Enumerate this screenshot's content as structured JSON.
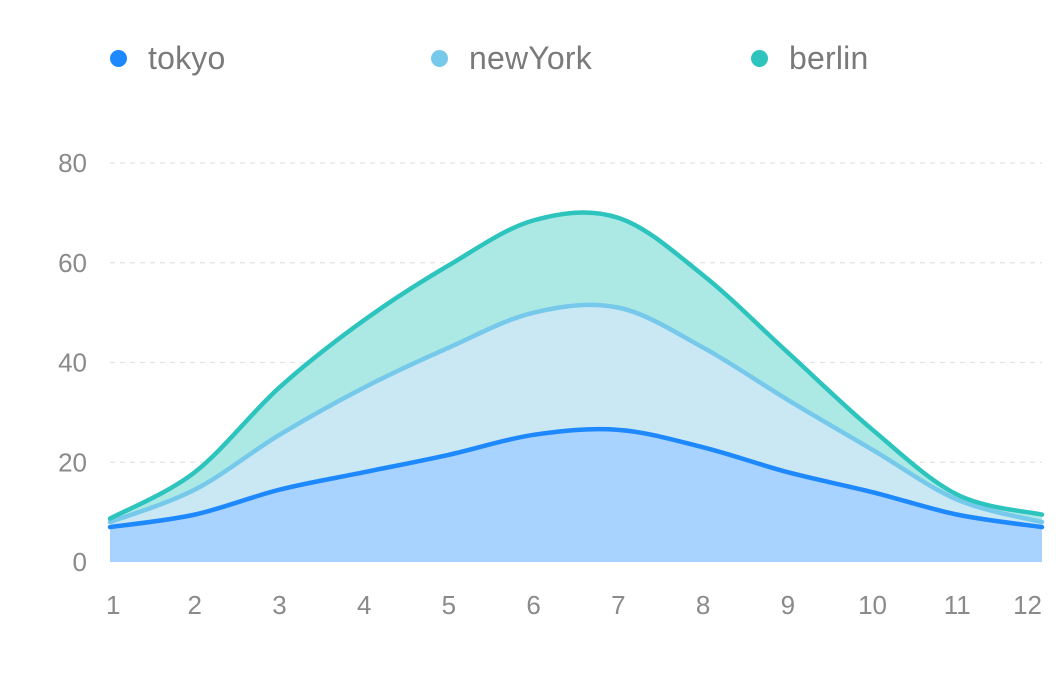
{
  "chart_data": {
    "type": "area",
    "stacked": true,
    "smooth": true,
    "x": [
      1,
      2,
      3,
      4,
      5,
      6,
      7,
      8,
      9,
      10,
      11,
      12
    ],
    "ylim": [
      0,
      80
    ],
    "yticks": [
      0,
      20,
      40,
      60,
      80
    ],
    "grid": true,
    "legend_position": "top",
    "series": [
      {
        "name": "tokyo",
        "color": "#1e88ff",
        "fill": "#a8d2ff",
        "values": [
          7.0,
          9.5,
          14.5,
          18.0,
          21.5,
          25.5,
          26.5,
          23.0,
          18.0,
          14.0,
          9.5,
          7.0
        ]
      },
      {
        "name": "newYork",
        "color": "#76c9ea",
        "fill": "#c9e8f3",
        "values": [
          1.0,
          5.0,
          11.0,
          17.0,
          21.5,
          24.5,
          24.5,
          20.0,
          14.5,
          8.5,
          3.0,
          1.0
        ]
      },
      {
        "name": "berlin",
        "color": "#2ec4be",
        "fill": "#ace9e5",
        "values": [
          0.7,
          3.5,
          9.5,
          13.5,
          16.5,
          18.5,
          18.0,
          14.5,
          9.5,
          4.0,
          1.0,
          1.5
        ]
      }
    ]
  }
}
